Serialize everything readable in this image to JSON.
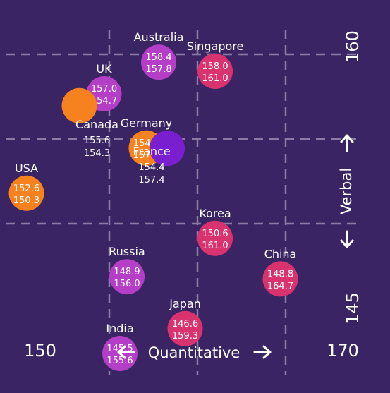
{
  "chart_data": {
    "type": "scatter",
    "title": "",
    "xlabel": "Quantitative",
    "ylabel": "Verbal",
    "xlim": [
      150,
      170
    ],
    "ylim": [
      145,
      160
    ],
    "x_tick_labels": [
      "150",
      "170"
    ],
    "y_tick_labels": [
      "145",
      "160"
    ],
    "grid": true,
    "points": [
      {
        "name": "Australia",
        "v1": "158.4",
        "v2": "157.8",
        "x": 157.8,
        "y": 158.4,
        "color": "#b43fc6"
      },
      {
        "name": "Singapore",
        "v1": "158.0",
        "v2": "161.0",
        "x": 161.0,
        "y": 158.0,
        "color": "#d8336e"
      },
      {
        "name": "UK",
        "v1": "157.0",
        "v2": "154.7",
        "x": 154.7,
        "y": 157.0,
        "color": "#b43fc6"
      },
      {
        "name": "Germany",
        "v1": "154.6",
        "v2": "157.1",
        "x": 157.1,
        "y": 154.6,
        "color": "#f5821f"
      },
      {
        "name": "Canada",
        "v1": "155.6",
        "v2": "154.3",
        "x": 154.3,
        "y": 155.6,
        "color": "#f5821f"
      },
      {
        "name": "France",
        "v1": "154.4",
        "v2": "157.4",
        "x": 157.4,
        "y": 154.4,
        "color": "#7a1fd0"
      },
      {
        "name": "USA",
        "v1": "152.6",
        "v2": "150.3",
        "x": 150.3,
        "y": 152.6,
        "color": "#f5821f"
      },
      {
        "name": "Korea",
        "v1": "150.6",
        "v2": "161.0",
        "x": 161.0,
        "y": 150.6,
        "color": "#d8336e"
      },
      {
        "name": "Russia",
        "v1": "148.9",
        "v2": "156.0",
        "x": 156.0,
        "y": 148.9,
        "color": "#b43fc6"
      },
      {
        "name": "China",
        "v1": "148.8",
        "v2": "164.7",
        "x": 164.7,
        "y": 148.8,
        "color": "#d8336e"
      },
      {
        "name": "India",
        "v1": "145.5",
        "v2": "155.6",
        "x": 155.6,
        "y": 145.5,
        "color": "#b43fc6"
      },
      {
        "name": "Japan",
        "v1": "146.6",
        "v2": "159.3",
        "x": 159.3,
        "y": 146.6,
        "color": "#d8336e"
      }
    ]
  },
  "colors": {
    "background": "#3a2463",
    "grid": "#8a7aa6",
    "text": "#ffffff"
  }
}
